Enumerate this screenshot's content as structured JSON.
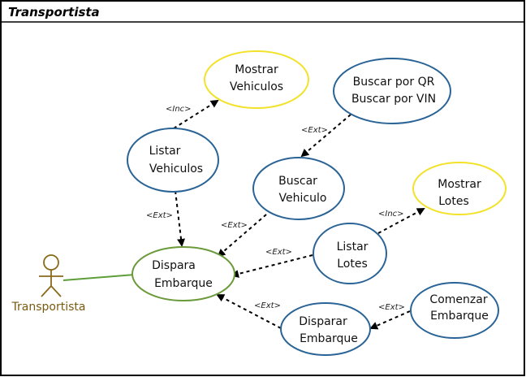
{
  "diagram": {
    "title": "Transportista",
    "actor": {
      "label": "Transportista"
    },
    "colors": {
      "default_border": "#2a6496",
      "highlight_border": "#f2e22a",
      "trigger_border": "#6b9a3a",
      "actor_stroke": "#8a6a1a",
      "actor_text": "#7a5a10",
      "association": "#5e9e3a",
      "dependency": "#000000"
    },
    "use_cases": {
      "mostrar_vehiculos": {
        "line1": "Mostrar",
        "line2": "Vehiculos"
      },
      "buscar_qr_vin": {
        "line1": "Buscar por QR",
        "line2": "Buscar por VIN"
      },
      "listar_vehiculos": {
        "line1": "Listar",
        "line2": "Vehiculos"
      },
      "buscar_vehiculo": {
        "line1": "Buscar",
        "line2": "Vehiculo"
      },
      "mostrar_lotes": {
        "line1": "Mostrar",
        "line2": "Lotes"
      },
      "listar_lotes": {
        "line1": "Listar",
        "line2": "Lotes"
      },
      "dispara_embarque": {
        "line1": "Dispara",
        "line2": "Embarque"
      },
      "comenzar_embarque": {
        "line1": "Comenzar",
        "line2": "Embarque"
      },
      "disparar_embarque": {
        "line1": "Disparar",
        "line2": "Embarque"
      }
    },
    "relations": {
      "inc_listar_mostrar_vehiculos": "<Inc>",
      "ext_buscar_qr_to_buscar_vehiculo": "<Ext>",
      "ext_listar_vehiculos_to_dispara": "<Ext>",
      "ext_buscar_vehiculo_to_dispara": "<Ext>",
      "inc_listar_lotes_to_mostrar_lotes": "<Inc>",
      "ext_listar_lotes_to_dispara": "<Ext>",
      "ext_disparar_to_dispara": "<Ext>",
      "ext_comenzar_to_disparar": "<Ext>"
    }
  }
}
